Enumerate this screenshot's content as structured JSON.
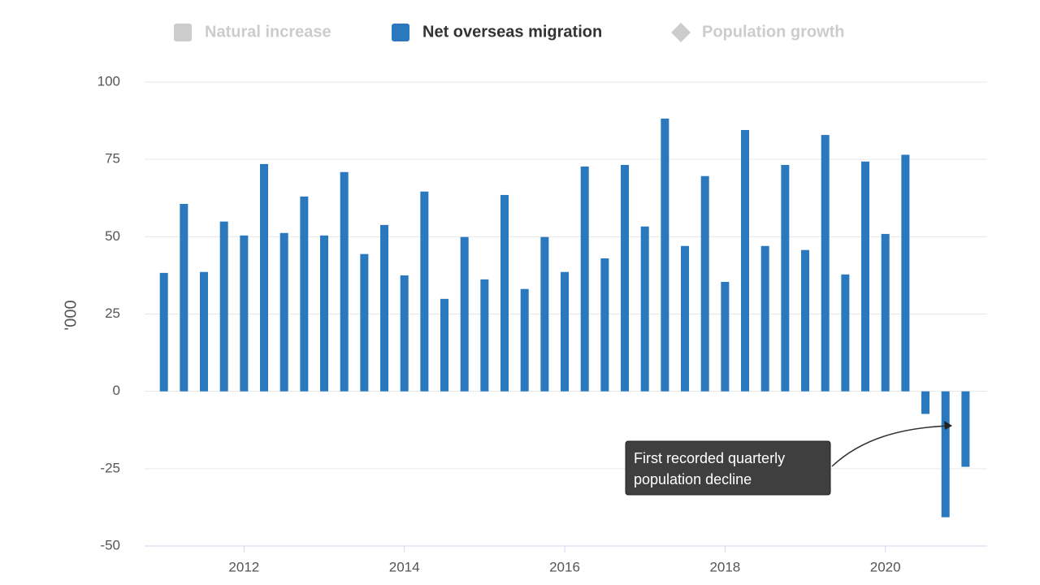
{
  "chart_data": {
    "type": "bar",
    "y_label": "'000",
    "x": [
      2011,
      2011.25,
      2011.5,
      2011.75,
      2012,
      2012.25,
      2012.5,
      2012.75,
      2013,
      2013.25,
      2013.5,
      2013.75,
      2014,
      2014.25,
      2014.5,
      2014.75,
      2015,
      2015.25,
      2015.5,
      2015.75,
      2016,
      2016.25,
      2016.5,
      2016.75,
      2017,
      2017.25,
      2017.5,
      2017.75,
      2018,
      2018.25,
      2018.5,
      2018.75,
      2019,
      2019.25,
      2019.5,
      2019.75,
      2020,
      2020.25,
      2020.5,
      2020.75,
      2021
    ],
    "series": [
      {
        "name": "Natural increase",
        "marker": "square",
        "color": "#cccccc",
        "visible": false
      },
      {
        "name": "Net overseas migration",
        "marker": "square",
        "color": "#2a78bd",
        "visible": true,
        "values": [
          38.3,
          60.6,
          38.6,
          54.9,
          50.4,
          73.5,
          51.2,
          63,
          50.4,
          70.9,
          44.4,
          53.8,
          37.5,
          64.6,
          29.9,
          49.9,
          36.2,
          63.5,
          33.1,
          49.9,
          38.6,
          72.7,
          43,
          73.2,
          53.3,
          88.2,
          47,
          69.6,
          35.4,
          84.5,
          47,
          73.2,
          45.7,
          82.9,
          37.8,
          74.3,
          50.9,
          76.5,
          -7.3,
          -40.7,
          -24.4
        ]
      },
      {
        "name": "Population growth",
        "marker": "diamond",
        "color": "#cccccc",
        "visible": false
      }
    ],
    "xlim": [
      2010.76,
      2021.27
    ],
    "xticks": [
      2012,
      2014,
      2016,
      2018,
      2020
    ],
    "ylim": [
      -50,
      100
    ],
    "yticks": [
      -50,
      -25,
      0,
      25,
      50,
      75,
      100
    ],
    "grid": true,
    "annotation": {
      "lines": [
        "First recorded quarterly",
        "population decline"
      ]
    }
  }
}
